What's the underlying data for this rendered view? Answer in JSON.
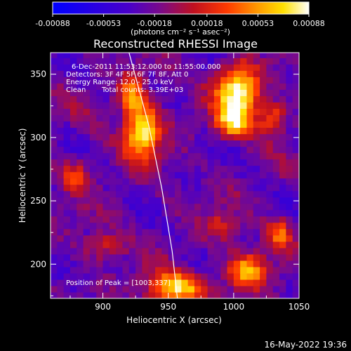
{
  "chart_data": {
    "type": "heatmap",
    "title": "Reconstructed RHESSI Image",
    "xlabel": "Heliocentric X (arcsec)",
    "ylabel": "Heliocentric Y (arcsec)",
    "xlim": [
      860,
      1050
    ],
    "ylim": [
      173,
      367
    ],
    "x_ticks": [
      900,
      950,
      1000,
      1050
    ],
    "y_ticks": [
      200,
      250,
      300,
      350
    ],
    "colorbar": {
      "ticks": [
        "-0.00088",
        "-0.00053",
        "-0.00018",
        "0.00018",
        "0.00053",
        "0.00088"
      ],
      "values": [
        -0.00088,
        -0.00053,
        -0.00018,
        0.00018,
        0.00053,
        0.00088
      ],
      "range": [
        -0.00088,
        0.00088
      ],
      "unit_label": "(photons cm⁻² s⁻¹ asec⁻²)",
      "colors": [
        "#0000ff",
        "#4a00c8",
        "#7a0a8a",
        "#c01020",
        "#ff3a00",
        "#ff9a00",
        "#ffe000",
        "#ffffff"
      ]
    },
    "annotations": [
      "6-Dec-2011 11:53:12.000 to 11:55:00.000",
      "Detectors: 3F 4F 5F 6F 7F 8F, Att 0",
      "Energy Range: 12.0 - 25.0 keV",
      "Clean",
      "Total counts: 3.39E+03"
    ],
    "peak_label": "Position of Peak = [1003,337]",
    "limb_curve": [
      [
        920,
        367
      ],
      [
        935,
        310
      ],
      [
        945,
        260
      ],
      [
        953,
        210
      ],
      [
        957,
        173
      ]
    ],
    "hot_spots": [
      {
        "x": 930,
        "y": 305,
        "amp": 0.9,
        "sx": 14,
        "sy": 22
      },
      {
        "x": 922,
        "y": 335,
        "amp": 0.6,
        "sx": 10,
        "sy": 14
      },
      {
        "x": 1003,
        "y": 337,
        "amp": 1.0,
        "sx": 16,
        "sy": 20
      },
      {
        "x": 1000,
        "y": 312,
        "amp": 0.7,
        "sx": 14,
        "sy": 12
      },
      {
        "x": 955,
        "y": 182,
        "amp": 0.85,
        "sx": 22,
        "sy": 12
      },
      {
        "x": 1010,
        "y": 195,
        "amp": 0.7,
        "sx": 16,
        "sy": 14
      },
      {
        "x": 1035,
        "y": 225,
        "amp": 0.5,
        "sx": 10,
        "sy": 12
      },
      {
        "x": 880,
        "y": 270,
        "amp": 0.45,
        "sx": 12,
        "sy": 12
      },
      {
        "x": 1030,
        "y": 315,
        "amp": 0.55,
        "sx": 10,
        "sy": 12
      },
      {
        "x": 990,
        "y": 230,
        "amp": 0.35,
        "sx": 12,
        "sy": 10
      },
      {
        "x": 900,
        "y": 215,
        "amp": 0.4,
        "sx": 14,
        "sy": 10
      }
    ]
  },
  "footer_date": "16-May-2022 19:36"
}
